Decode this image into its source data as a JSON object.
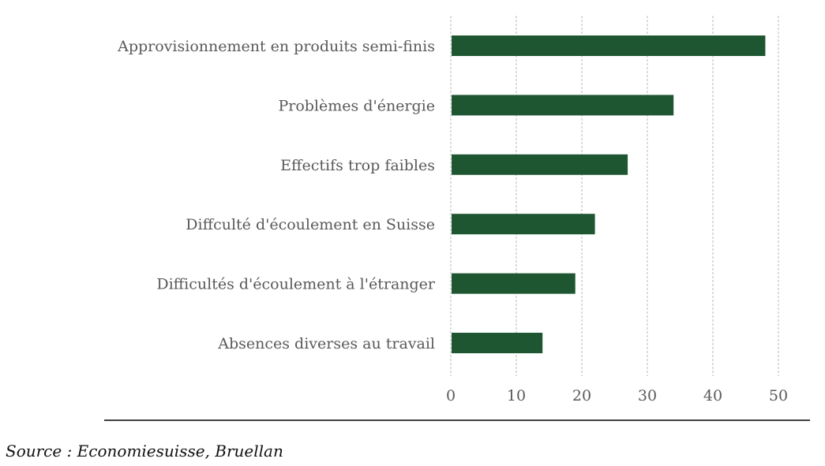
{
  "chart_data": {
    "type": "bar",
    "orientation": "horizontal",
    "categories": [
      "Approvisionnement en produits semi-finis",
      "Problèmes d'énergie",
      "Effectifs trop faibles",
      "Diffculté d'écoulement en Suisse",
      "Difficultés d'écoulement à l'étranger",
      "Absences diverses au travail"
    ],
    "values": [
      48,
      34,
      27,
      22,
      19,
      14
    ],
    "xlim": [
      0,
      50
    ],
    "xticks": [
      "0",
      "10",
      "20",
      "30",
      "40",
      "50"
    ],
    "grid": "vertical",
    "bar_color": "#1e5631",
    "legend": "none"
  },
  "source": "Source : Economiesuisse, Bruellan"
}
